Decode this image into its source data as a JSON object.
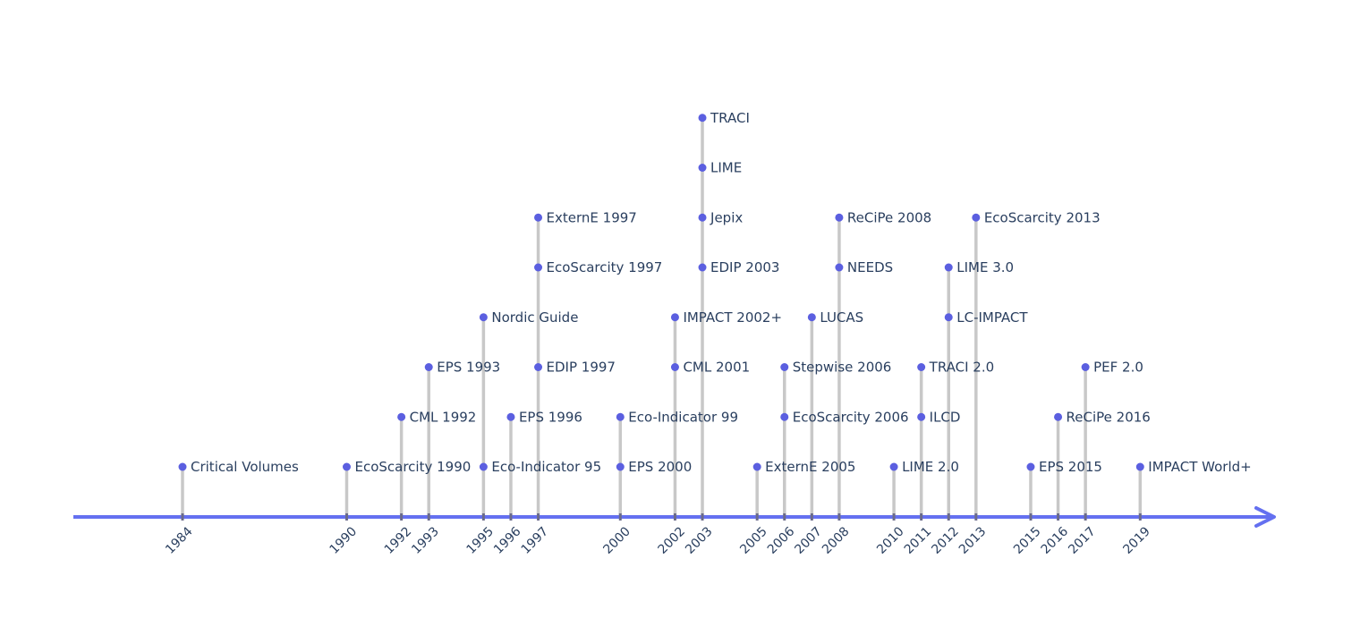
{
  "chart_data": {
    "type": "scatter",
    "title": "",
    "xlabel": "",
    "ylabel": "",
    "xlim": [
      1980,
      2027
    ],
    "grid": false,
    "legend": "none",
    "colors": {
      "marker": "#5b5fe0",
      "stem": "#c8c8c8",
      "axis": "#6470f0",
      "label": "#2a3f5f"
    },
    "x_ticks": [
      1984,
      1990,
      1992,
      1993,
      1995,
      1996,
      1997,
      2000,
      2002,
      2003,
      2005,
      2006,
      2007,
      2008,
      2010,
      2011,
      2012,
      2013,
      2015,
      2016,
      2017,
      2019
    ],
    "events": [
      {
        "year": 1984,
        "level": 1,
        "label": "Critical Volumes"
      },
      {
        "year": 1990,
        "level": 1,
        "label": "EcoScarcity 1990"
      },
      {
        "year": 1992,
        "level": 2,
        "label": "CML 1992"
      },
      {
        "year": 1993,
        "level": 3,
        "label": "EPS 1993"
      },
      {
        "year": 1995,
        "level": 1,
        "label": "Eco-Indicator 95"
      },
      {
        "year": 1995,
        "level": 4,
        "label": "Nordic Guide"
      },
      {
        "year": 1996,
        "level": 2,
        "label": "EPS 1996"
      },
      {
        "year": 1997,
        "level": 3,
        "label": "EDIP 1997"
      },
      {
        "year": 1997,
        "level": 5,
        "label": "EcoScarcity 1997"
      },
      {
        "year": 1997,
        "level": 6,
        "label": "ExternE 1997"
      },
      {
        "year": 2000,
        "level": 1,
        "label": "EPS 2000"
      },
      {
        "year": 2000,
        "level": 2,
        "label": "Eco-Indicator 99"
      },
      {
        "year": 2002,
        "level": 3,
        "label": "CML 2001"
      },
      {
        "year": 2002,
        "level": 4,
        "label": "IMPACT 2002+"
      },
      {
        "year": 2003,
        "level": 5,
        "label": "EDIP 2003"
      },
      {
        "year": 2003,
        "level": 6,
        "label": "Jepix"
      },
      {
        "year": 2003,
        "level": 7,
        "label": "LIME"
      },
      {
        "year": 2003,
        "level": 8,
        "label": "TRACI"
      },
      {
        "year": 2005,
        "level": 1,
        "label": "ExternE 2005"
      },
      {
        "year": 2006,
        "level": 2,
        "label": "EcoScarcity 2006"
      },
      {
        "year": 2006,
        "level": 3,
        "label": "Stepwise 2006"
      },
      {
        "year": 2007,
        "level": 4,
        "label": "LUCAS"
      },
      {
        "year": 2008,
        "level": 5,
        "label": "NEEDS"
      },
      {
        "year": 2008,
        "level": 6,
        "label": "ReCiPe 2008"
      },
      {
        "year": 2010,
        "level": 1,
        "label": "LIME 2.0"
      },
      {
        "year": 2011,
        "level": 2,
        "label": "ILCD"
      },
      {
        "year": 2011,
        "level": 3,
        "label": "TRACI 2.0"
      },
      {
        "year": 2012,
        "level": 4,
        "label": "LC-IMPACT"
      },
      {
        "year": 2012,
        "level": 5,
        "label": "LIME 3.0"
      },
      {
        "year": 2013,
        "level": 6,
        "label": "EcoScarcity 2013"
      },
      {
        "year": 2015,
        "level": 1,
        "label": "EPS 2015"
      },
      {
        "year": 2016,
        "level": 2,
        "label": "ReCiPe 2016"
      },
      {
        "year": 2017,
        "level": 3,
        "label": "PEF 2.0"
      },
      {
        "year": 2019,
        "level": 1,
        "label": "IMPACT World+"
      }
    ]
  }
}
